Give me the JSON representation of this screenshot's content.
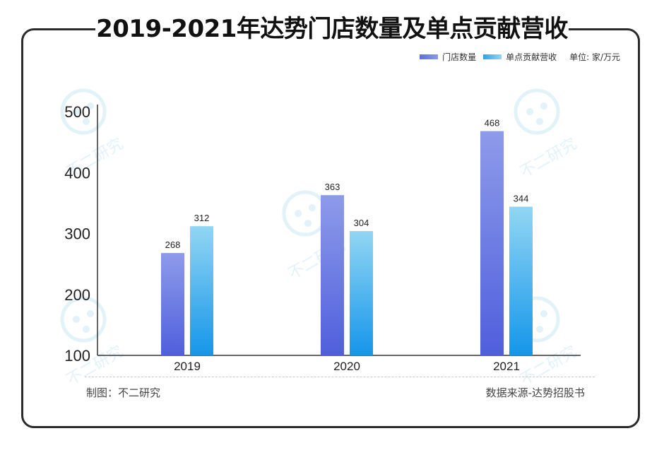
{
  "chart_data": {
    "type": "bar",
    "title": "2019-2021年达势门店数量及单点贡献营收",
    "categories": [
      "2019",
      "2020",
      "2021"
    ],
    "series": [
      {
        "name": "门店数量",
        "values": [
          268,
          363,
          468
        ],
        "color_from": "#4f5fdc",
        "color_to": "#8e9bea"
      },
      {
        "name": "单点贡献营收",
        "values": [
          312,
          304,
          344
        ],
        "color_from": "#1596ea",
        "color_to": "#92d6f3"
      }
    ],
    "ylim": [
      100,
      500
    ],
    "yticks": [
      "100",
      "200",
      "300",
      "400",
      "500"
    ],
    "unit": "单位: 家/万元",
    "xlabel": "",
    "ylabel": ""
  },
  "footer": {
    "made_by": "制图：不二研究",
    "source": "数据来源-达势招股书"
  },
  "watermark": {
    "text": "不二研究"
  }
}
